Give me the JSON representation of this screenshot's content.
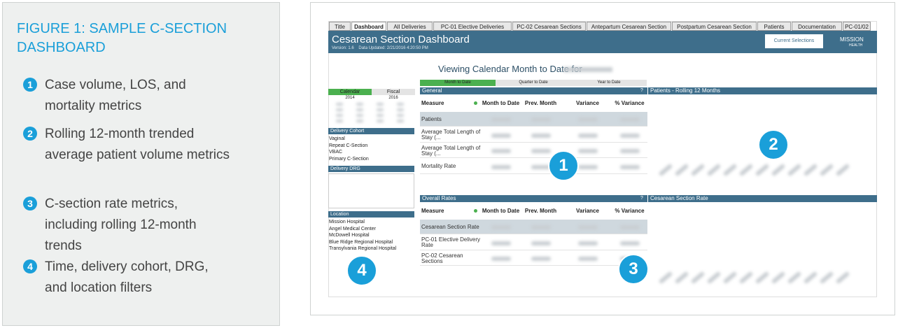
{
  "figure": {
    "title": "FIGURE 1: SAMPLE C-SECTION DASHBOARD",
    "items": [
      {
        "number": "1",
        "text": "Case volume, LOS, and mortality metrics"
      },
      {
        "number": "2",
        "text": "Rolling 12-month trended average patient volume metrics"
      },
      {
        "number": "3",
        "text": "C-section rate metrics, including rolling 12-month trends"
      },
      {
        "number": "4",
        "text": "Time, delivery cohort, DRG, and location filters"
      }
    ]
  },
  "dashboard": {
    "tabs": [
      "Title",
      "Dashboard",
      "All Deliveries",
      "PC-01 Elective Deliveries",
      "PC-02 Cesarean Sections",
      "Antepartum Cesarean Section",
      "Postpartum Cesarean Section",
      "Patients",
      "Documentation",
      "PC-01/02"
    ],
    "title": "Cesarean Section Dashboard",
    "version": "Version: 1.6    Data Updated: 2/21/2016 4:20:50 PM",
    "current_selections": "Current Selections",
    "logo": [
      "MISSION",
      "HEALTH"
    ],
    "viewing": "Viewing Calendar Month to Date for",
    "periods": [
      "Month to Date",
      "Quarter to Date",
      "Year to Date"
    ],
    "calendar": {
      "tabs": [
        "Calendar",
        "Fiscal"
      ],
      "years": [
        "2014",
        "2016"
      ]
    },
    "filters": [
      {
        "title": "Delivery Cohort",
        "items": [
          "Vaginal",
          "Repeat C-Section",
          "VBAC",
          "Primary C-Section"
        ]
      },
      {
        "title": "Delivery DRG"
      },
      {
        "title": "Location",
        "items": [
          "Mission Hospital",
          "Angel Medical Center",
          "McDowell Hospital",
          "Blue Ridge Regional Hospital",
          "Transylvania Regional Hospital"
        ]
      }
    ],
    "general": {
      "title": "General",
      "help": "?",
      "columns": [
        "Measure",
        "Month to Date",
        "Prev. Month",
        "Variance",
        "% Variance"
      ],
      "rows": [
        "Patients",
        "Average Total Length of Stay (...",
        "Average Total Length of Stay (...",
        "Mortality Rate"
      ]
    },
    "overall": {
      "title": "Overall Rates",
      "help": "?",
      "columns": [
        "Measure",
        "Month to Date",
        "Prev. Month",
        "Variance",
        "% Variance"
      ],
      "rows": [
        "Cesarean Section Rate",
        "PC-01 Elective Delivery Rate",
        "PC-02 Cesarean Sections"
      ]
    },
    "charts": [
      "Patients - Rolling 12 Months",
      "Cesarean Section Rate"
    ],
    "callouts": [
      "1",
      "2",
      "3",
      "4"
    ]
  }
}
